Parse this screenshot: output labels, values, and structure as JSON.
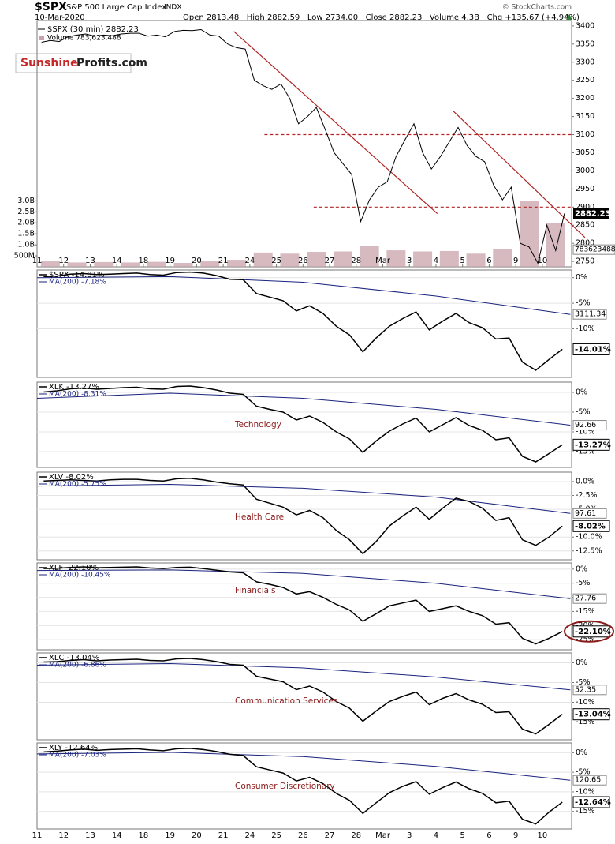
{
  "header": {
    "symbol": "$SPX",
    "name": "S&P 500 Large Cap Index",
    "exchange": "INDX",
    "date": "10-Mar-2020",
    "stats": "Open 2813.48   High 2882.59   Low 2734.00   Close 2882.23   Volume 4.3B   Chg +135.67 (+4.94%)",
    "copyright": "© StockCharts.com"
  },
  "watermark": {
    "first": "Sunshine",
    "second": "Profits.com"
  },
  "chart_data": [
    {
      "type": "line",
      "legend": "$SPX (30 min) 2882.23",
      "volume_legend": "Volume 783,623,488",
      "color": "#000000",
      "x": [
        0.17,
        0.5,
        0.83,
        1.17,
        1.5,
        1.83,
        2.17,
        2.5,
        2.83,
        3.17,
        3.5,
        3.83,
        4.17,
        4.5,
        4.83,
        5.17,
        5.5,
        5.83,
        6.17,
        6.5,
        6.83,
        7.17,
        7.5,
        7.83,
        8.17,
        8.5,
        8.83,
        9.17,
        9.5,
        9.83,
        10.17,
        10.5,
        10.83,
        11.17,
        11.5,
        11.83,
        12.17,
        12.5,
        12.83,
        13.17,
        13.5,
        13.83,
        14.17,
        14.5,
        14.83,
        15.17,
        15.5,
        15.83,
        16.17,
        16.5,
        16.83,
        17.17,
        17.5,
        17.83,
        18.17,
        18.5,
        18.83,
        19.17,
        19.5,
        19.83
      ],
      "values": [
        3355,
        3360,
        3357,
        3370,
        3375,
        3378,
        3372,
        3375,
        3373,
        3378,
        3380,
        3380,
        3372,
        3375,
        3370,
        3385,
        3388,
        3387,
        3390,
        3375,
        3372,
        3350,
        3340,
        3336,
        3250,
        3235,
        3225,
        3240,
        3200,
        3130,
        3150,
        3175,
        3115,
        3050,
        3020,
        2990,
        2860,
        2920,
        2955,
        2970,
        3040,
        3085,
        3130,
        3050,
        3005,
        3040,
        3080,
        3120,
        3070,
        3040,
        3025,
        2960,
        2920,
        2955,
        2800,
        2790,
        2745,
        2850,
        2780,
        2882.23
      ],
      "xlim": [
        0,
        20.1
      ],
      "xticks": [
        {
          "value": 0,
          "label": "11"
        },
        {
          "value": 1,
          "label": "12"
        },
        {
          "value": 2,
          "label": "13"
        },
        {
          "value": 3,
          "label": "14"
        },
        {
          "value": 4,
          "label": "18"
        },
        {
          "value": 5,
          "label": "19"
        },
        {
          "value": 6,
          "label": "20"
        },
        {
          "value": 7,
          "label": "21"
        },
        {
          "value": 8,
          "label": "24"
        },
        {
          "value": 9,
          "label": "25"
        },
        {
          "value": 10,
          "label": "26"
        },
        {
          "value": 11,
          "label": "27"
        },
        {
          "value": 12,
          "label": "28"
        },
        {
          "value": 13,
          "label": "Mar"
        },
        {
          "value": 14,
          "label": "3"
        },
        {
          "value": 15,
          "label": "4"
        },
        {
          "value": 16,
          "label": "5"
        },
        {
          "value": 17,
          "label": "6"
        },
        {
          "value": 18,
          "label": "9"
        },
        {
          "value": 19,
          "label": "10"
        }
      ],
      "ylim": [
        2735,
        3415
      ],
      "yticks": [
        2750,
        2800,
        2850,
        2900,
        2950,
        3000,
        3050,
        3100,
        3150,
        3200,
        3250,
        3300,
        3350,
        3400
      ],
      "volume": {
        "x": [
          0.5,
          1.5,
          2.5,
          3.5,
          4.5,
          5.5,
          6.5,
          7.5,
          8.5,
          9.5,
          10.5,
          11.5,
          12.5,
          13.5,
          14.5,
          15.5,
          16.5,
          17.5,
          18.5,
          19.5
        ],
        "values": [
          250000000,
          200000000,
          220000000,
          200000000,
          230000000,
          180000000,
          250000000,
          320000000,
          650000000,
          600000000,
          680000000,
          700000000,
          950000000,
          750000000,
          700000000,
          720000000,
          600000000,
          800000000,
          3000000000,
          2000000000
        ],
        "ylim": [
          0,
          3300000000
        ],
        "yticks": [
          {
            "value": 500000000,
            "label": "500M"
          },
          {
            "value": 1000000000,
            "label": "1.0B"
          },
          {
            "value": 1500000000,
            "label": "1.5B"
          },
          {
            "value": 2000000000,
            "label": "2.0B"
          },
          {
            "value": 2500000000,
            "label": "2.5B"
          },
          {
            "value": 3000000000,
            "label": "3.0B"
          }
        ],
        "last": 783623488,
        "color": "#c9a3ab"
      },
      "lines": [
        {
          "x": [
            7.4,
            15.05
          ],
          "y": [
            3385,
            2882
          ],
          "color": "#b22222",
          "dash": false
        },
        {
          "x": [
            15.65,
            20.6
          ],
          "y": [
            3165,
            2816
          ],
          "color": "#b22222",
          "dash": false
        },
        {
          "x": [
            8.55,
            20.1
          ],
          "y": [
            3100,
            3100
          ],
          "color": "#b22222",
          "dash": true
        },
        {
          "x": [
            10.4,
            20.1
          ],
          "y": [
            2900,
            2900
          ],
          "color": "#b22222",
          "dash": true
        }
      ]
    },
    {
      "type": "line",
      "legend": "$SPX -14.01%",
      "ma_legend": "MA(200) -7.18%",
      "last_label": "-14.01%",
      "color": "#000000",
      "x": [
        0.25,
        0.75,
        1.25,
        1.75,
        2.25,
        2.75,
        3.25,
        3.75,
        4.25,
        4.75,
        5.25,
        5.75,
        6.25,
        6.75,
        7.25,
        7.75,
        8.25,
        8.75,
        9.25,
        9.75,
        10.25,
        10.75,
        11.25,
        11.75,
        12.25,
        12.75,
        13.25,
        13.75,
        14.25,
        14.75,
        15.25,
        15.75,
        16.25,
        16.75,
        17.25,
        17.75,
        18.25,
        18.75,
        19.25,
        19.75
      ],
      "values": [
        0.2,
        0.3,
        0.7,
        0.8,
        0.6,
        0.7,
        0.8,
        0.9,
        0.6,
        0.5,
        1.0,
        1.1,
        0.9,
        0.4,
        -0.3,
        -0.4,
        -3.1,
        -3.8,
        -4.5,
        -6.5,
        -5.5,
        -7.0,
        -9.5,
        -11.2,
        -14.5,
        -11.8,
        -9.5,
        -8.0,
        -6.7,
        -10.2,
        -8.5,
        -7.0,
        -8.8,
        -9.8,
        -12.0,
        -11.8,
        -16.5,
        -18.1,
        -16.0,
        -14.01
      ],
      "ma": {
        "x": [
          0,
          5,
          10,
          15,
          20.05
        ],
        "values": [
          0.0,
          0.2,
          -0.9,
          -3.6,
          -7.18
        ],
        "color": "#1a237e",
        "last": 3111.34
      },
      "xlim": [
        0,
        20.1
      ],
      "ylim": [
        -19.5,
        1.5
      ],
      "yticks": [
        {
          "value": 0,
          "label": "0%"
        },
        {
          "value": -5,
          "label": "-5%"
        },
        {
          "value": -10,
          "label": "-10%"
        }
      ]
    },
    {
      "type": "line",
      "legend": "XLK -13.27%",
      "ma_legend": "MA(200) -8.31%",
      "label": "Technology",
      "last_label": "-13.27%",
      "color": "#000000",
      "x": [
        0.25,
        0.75,
        1.25,
        1.75,
        2.25,
        2.75,
        3.25,
        3.75,
        4.25,
        4.75,
        5.25,
        5.75,
        6.25,
        6.75,
        7.25,
        7.75,
        8.25,
        8.75,
        9.25,
        9.75,
        10.25,
        10.75,
        11.25,
        11.75,
        12.25,
        12.75,
        13.25,
        13.75,
        14.25,
        14.75,
        15.25,
        15.75,
        16.25,
        16.75,
        17.25,
        17.75,
        18.25,
        18.75,
        19.25,
        19.75
      ],
      "values": [
        0.1,
        0.4,
        0.9,
        1.1,
        0.8,
        1.0,
        1.2,
        1.3,
        0.9,
        0.8,
        1.5,
        1.6,
        1.2,
        0.6,
        -0.2,
        -0.5,
        -3.5,
        -4.3,
        -5.0,
        -7.0,
        -6.0,
        -7.6,
        -10.0,
        -11.8,
        -15.2,
        -12.3,
        -9.8,
        -8.0,
        -6.5,
        -10.0,
        -8.2,
        -6.4,
        -8.4,
        -9.6,
        -12.0,
        -11.5,
        -16.2,
        -17.6,
        -15.5,
        -13.27
      ],
      "ma": {
        "x": [
          0,
          5,
          10,
          15,
          20.05
        ],
        "values": [
          -1.5,
          -0.2,
          -1.5,
          -4.3,
          -8.31
        ],
        "color": "#1a237e",
        "last": 92.66
      },
      "xlim": [
        0,
        20.1
      ],
      "ylim": [
        -19,
        2.6
      ],
      "yticks": [
        {
          "value": 0,
          "label": "0%"
        },
        {
          "value": -5,
          "label": "-5%"
        },
        {
          "value": -10,
          "label": "-10%"
        },
        {
          "value": -15,
          "label": "-15%"
        }
      ]
    },
    {
      "type": "line",
      "legend": "XLV -8.02%",
      "ma_legend": "MA(200) -5.75%",
      "label": "Health Care",
      "last_label": "-8.02%",
      "color": "#000000",
      "x": [
        0.25,
        0.75,
        1.25,
        1.75,
        2.25,
        2.75,
        3.25,
        3.75,
        4.25,
        4.75,
        5.25,
        5.75,
        6.25,
        6.75,
        7.25,
        7.75,
        8.25,
        8.75,
        9.25,
        9.75,
        10.25,
        10.75,
        11.25,
        11.75,
        12.25,
        12.75,
        13.25,
        13.75,
        14.25,
        14.75,
        15.25,
        15.75,
        16.25,
        16.75,
        17.25,
        17.75,
        18.25,
        18.75,
        19.25,
        19.75
      ],
      "values": [
        0.1,
        0.2,
        0.3,
        0.2,
        0.1,
        0.3,
        0.4,
        0.4,
        0.2,
        0.1,
        0.5,
        0.6,
        0.3,
        -0.1,
        -0.4,
        -0.6,
        -3.2,
        -3.9,
        -4.6,
        -6.0,
        -5.2,
        -6.5,
        -8.8,
        -10.5,
        -13.0,
        -10.8,
        -8.0,
        -6.2,
        -4.6,
        -6.8,
        -4.8,
        -3.0,
        -3.6,
        -4.8,
        -7.0,
        -6.5,
        -10.5,
        -11.5,
        -10.0,
        -8.02
      ],
      "ma": {
        "x": [
          0,
          5,
          10,
          15,
          20.05
        ],
        "values": [
          -0.8,
          -0.5,
          -1.2,
          -2.8,
          -5.75
        ],
        "color": "#1a237e",
        "last": 97.61
      },
      "xlim": [
        0,
        20.1
      ],
      "ylim": [
        -14.1,
        1.7
      ],
      "yticks": [
        {
          "value": 0,
          "label": "0.0%"
        },
        {
          "value": -2.5,
          "label": "-2.5%"
        },
        {
          "value": -5,
          "label": "-5.0%"
        },
        {
          "value": -7.5,
          "label": "-7.5%"
        },
        {
          "value": -10,
          "label": "-10.0%"
        },
        {
          "value": -12.5,
          "label": "-12.5%"
        }
      ]
    },
    {
      "type": "line",
      "legend": "XLF -22.10%",
      "ma_legend": "MA(200) -10.45%",
      "label": "Financials",
      "last_label": "-22.10%",
      "color": "#000000",
      "x": [
        0.25,
        0.75,
        1.25,
        1.75,
        2.25,
        2.75,
        3.25,
        3.75,
        4.25,
        4.75,
        5.25,
        5.75,
        6.25,
        6.75,
        7.25,
        7.75,
        8.25,
        8.75,
        9.25,
        9.75,
        10.25,
        10.75,
        11.25,
        11.75,
        12.25,
        12.75,
        13.25,
        13.75,
        14.25,
        14.75,
        15.25,
        15.75,
        16.25,
        16.75,
        17.25,
        17.75,
        18.25,
        18.75,
        19.25,
        19.75
      ],
      "values": [
        0.2,
        0.3,
        0.6,
        0.8,
        0.5,
        0.6,
        0.7,
        0.8,
        0.4,
        0.2,
        0.6,
        0.7,
        0.2,
        -0.4,
        -1.0,
        -1.3,
        -4.5,
        -5.4,
        -6.5,
        -8.8,
        -8.0,
        -10.0,
        -12.5,
        -14.5,
        -18.5,
        -15.8,
        -13.0,
        -12.0,
        -11.0,
        -15.0,
        -14.0,
        -13.0,
        -15.0,
        -16.5,
        -19.5,
        -19.0,
        -24.5,
        -26.5,
        -24.5,
        -22.1
      ],
      "ma": {
        "x": [
          0,
          5,
          10,
          15,
          20.05
        ],
        "values": [
          -0.5,
          -0.3,
          -1.5,
          -5.0,
          -10.45
        ],
        "color": "#1a237e",
        "last": 27.76
      },
      "xlim": [
        0,
        20.1
      ],
      "ylim": [
        -28.6,
        2.2
      ],
      "yticks": [
        {
          "value": 0,
          "label": "0%"
        },
        {
          "value": -5,
          "label": "-5%"
        },
        {
          "value": -10,
          "label": "-10%"
        },
        {
          "value": -15,
          "label": "-15%"
        },
        {
          "value": -20,
          "label": "-20%"
        },
        {
          "value": -25,
          "label": "-25%"
        }
      ]
    },
    {
      "type": "line",
      "legend": "XLC -13.04%",
      "ma_legend": "MA(200) -6.86%",
      "label": "Communication Services",
      "last_label": "-13.04%",
      "color": "#000000",
      "x": [
        0.25,
        0.75,
        1.25,
        1.75,
        2.25,
        2.75,
        3.25,
        3.75,
        4.25,
        4.75,
        5.25,
        5.75,
        6.25,
        6.75,
        7.25,
        7.75,
        8.25,
        8.75,
        9.25,
        9.75,
        10.25,
        10.75,
        11.25,
        11.75,
        12.25,
        12.75,
        13.25,
        13.75,
        14.25,
        14.75,
        15.25,
        15.75,
        16.25,
        16.75,
        17.25,
        17.75,
        18.25,
        18.75,
        19.25,
        19.75
      ],
      "values": [
        0.2,
        0.3,
        0.6,
        0.8,
        0.5,
        0.7,
        0.8,
        0.9,
        0.6,
        0.5,
        1.0,
        1.1,
        0.8,
        0.3,
        -0.4,
        -0.6,
        -3.4,
        -4.1,
        -4.8,
        -6.8,
        -5.9,
        -7.4,
        -9.8,
        -11.5,
        -14.8,
        -12.2,
        -9.8,
        -8.5,
        -7.4,
        -10.6,
        -9.0,
        -7.8,
        -9.4,
        -10.5,
        -12.6,
        -12.4,
        -16.8,
        -18.0,
        -15.6,
        -13.04
      ],
      "ma": {
        "x": [
          0,
          5,
          10,
          15,
          20.05
        ],
        "values": [
          -0.6,
          -0.2,
          -1.3,
          -3.6,
          -6.86
        ],
        "color": "#1a237e",
        "last": 52.35
      },
      "xlim": [
        0,
        20.1
      ],
      "ylim": [
        -19.5,
        2.5
      ],
      "yticks": [
        {
          "value": 0,
          "label": "0%"
        },
        {
          "value": -5,
          "label": "-5%"
        },
        {
          "value": -10,
          "label": "-10%"
        },
        {
          "value": -15,
          "label": "-15%"
        }
      ]
    },
    {
      "type": "line",
      "legend": "XLY -12.64%",
      "ma_legend": "MA(200) -7.03%",
      "label": "Consumer Discretionary",
      "last_label": "-12.64%",
      "color": "#000000",
      "x": [
        0.25,
        0.75,
        1.25,
        1.75,
        2.25,
        2.75,
        3.25,
        3.75,
        4.25,
        4.75,
        5.25,
        5.75,
        6.25,
        6.75,
        7.25,
        7.75,
        8.25,
        8.75,
        9.25,
        9.75,
        10.25,
        10.75,
        11.25,
        11.75,
        12.25,
        12.75,
        13.25,
        13.75,
        14.25,
        14.75,
        15.25,
        15.75,
        16.25,
        16.75,
        17.25,
        17.75,
        18.25,
        18.75,
        19.25,
        19.75
      ],
      "values": [
        0.2,
        0.4,
        0.7,
        0.9,
        0.6,
        0.8,
        0.9,
        1.0,
        0.7,
        0.5,
        1.0,
        1.1,
        0.8,
        0.3,
        -0.4,
        -0.7,
        -3.6,
        -4.4,
        -5.2,
        -7.2,
        -6.3,
        -7.9,
        -10.4,
        -12.2,
        -15.5,
        -12.8,
        -10.2,
        -8.6,
        -7.4,
        -10.6,
        -8.9,
        -7.5,
        -9.2,
        -10.4,
        -12.8,
        -12.4,
        -17.0,
        -18.2,
        -15.2,
        -12.64
      ],
      "ma": {
        "x": [
          0,
          5,
          10,
          15,
          20.05
        ],
        "values": [
          -0.3,
          0.1,
          -1.0,
          -3.5,
          -7.03
        ],
        "color": "#1a237e",
        "last": 120.65
      },
      "xlim": [
        0,
        20.1
      ],
      "ylim": [
        -19.5,
        2.5
      ],
      "yticks": [
        {
          "value": 0,
          "label": "0%"
        },
        {
          "value": -5,
          "label": "-5%"
        },
        {
          "value": -10,
          "label": "-10%"
        },
        {
          "value": -15,
          "label": "-15%"
        }
      ]
    }
  ]
}
